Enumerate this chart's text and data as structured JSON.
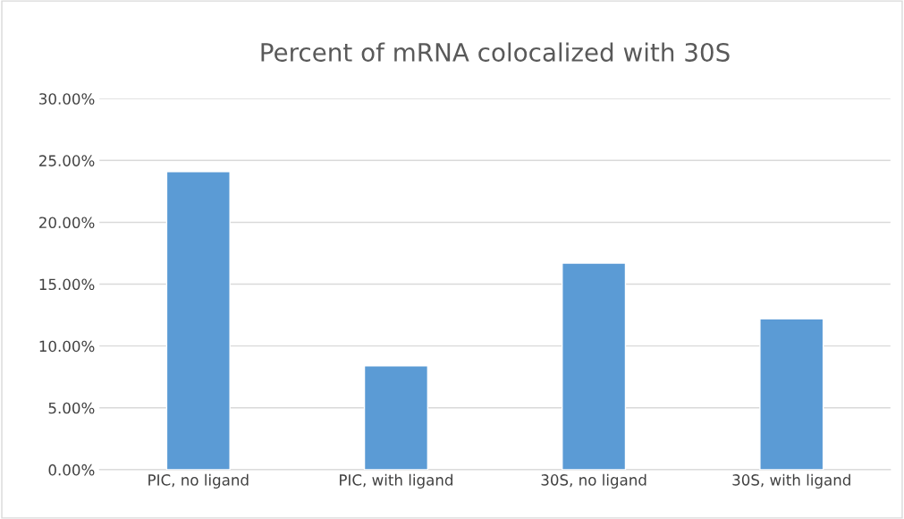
{
  "chart_data": {
    "type": "bar",
    "title": "Percent of mRNA colocalized with 30S",
    "categories": [
      "PIC, no ligand",
      "PIC, with ligand",
      "30S, no ligand",
      "30S, with ligand"
    ],
    "values": [
      24.1,
      8.4,
      16.7,
      12.2
    ],
    "color": "#5b9bd5",
    "ylim": [
      0,
      30
    ],
    "yticks": [
      {
        "value": 0,
        "label": "0.00%"
      },
      {
        "value": 5,
        "label": "5.00%"
      },
      {
        "value": 10,
        "label": "10.00%"
      },
      {
        "value": 15,
        "label": "15.00%"
      },
      {
        "value": 20,
        "label": "20.00%"
      },
      {
        "value": 25,
        "label": "25.00%"
      },
      {
        "value": 30,
        "label": "30.00%"
      }
    ],
    "grid": "y"
  }
}
